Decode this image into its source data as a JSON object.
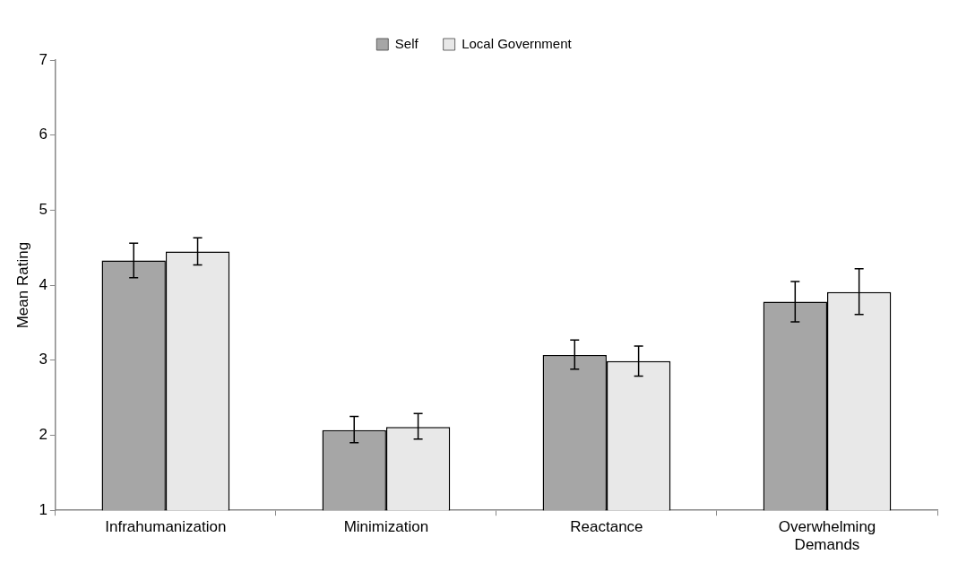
{
  "chart_data": {
    "type": "bar",
    "ylabel": "Mean Rating",
    "categories": [
      "Infrahumanization",
      "Minimization",
      "Reactance",
      "Overwhelming Demands"
    ],
    "series": [
      {
        "name": "Self",
        "color": "#a6a6a6",
        "values": [
          4.33,
          2.07,
          3.07,
          3.78
        ],
        "errors": [
          [
            4.1,
            4.56
          ],
          [
            1.9,
            2.25
          ],
          [
            2.88,
            3.27
          ],
          [
            3.51,
            4.05
          ]
        ]
      },
      {
        "name": "Local Government",
        "color": "#e8e8e8",
        "values": [
          4.45,
          2.11,
          2.99,
          3.91
        ],
        "errors": [
          [
            4.27,
            4.63
          ],
          [
            1.95,
            2.29
          ],
          [
            2.79,
            3.19
          ],
          [
            3.61,
            4.22
          ]
        ]
      }
    ],
    "ylim": [
      1,
      7
    ],
    "yticks": [
      1,
      2,
      3,
      4,
      5,
      6,
      7
    ],
    "grid": false,
    "legend": "top"
  }
}
